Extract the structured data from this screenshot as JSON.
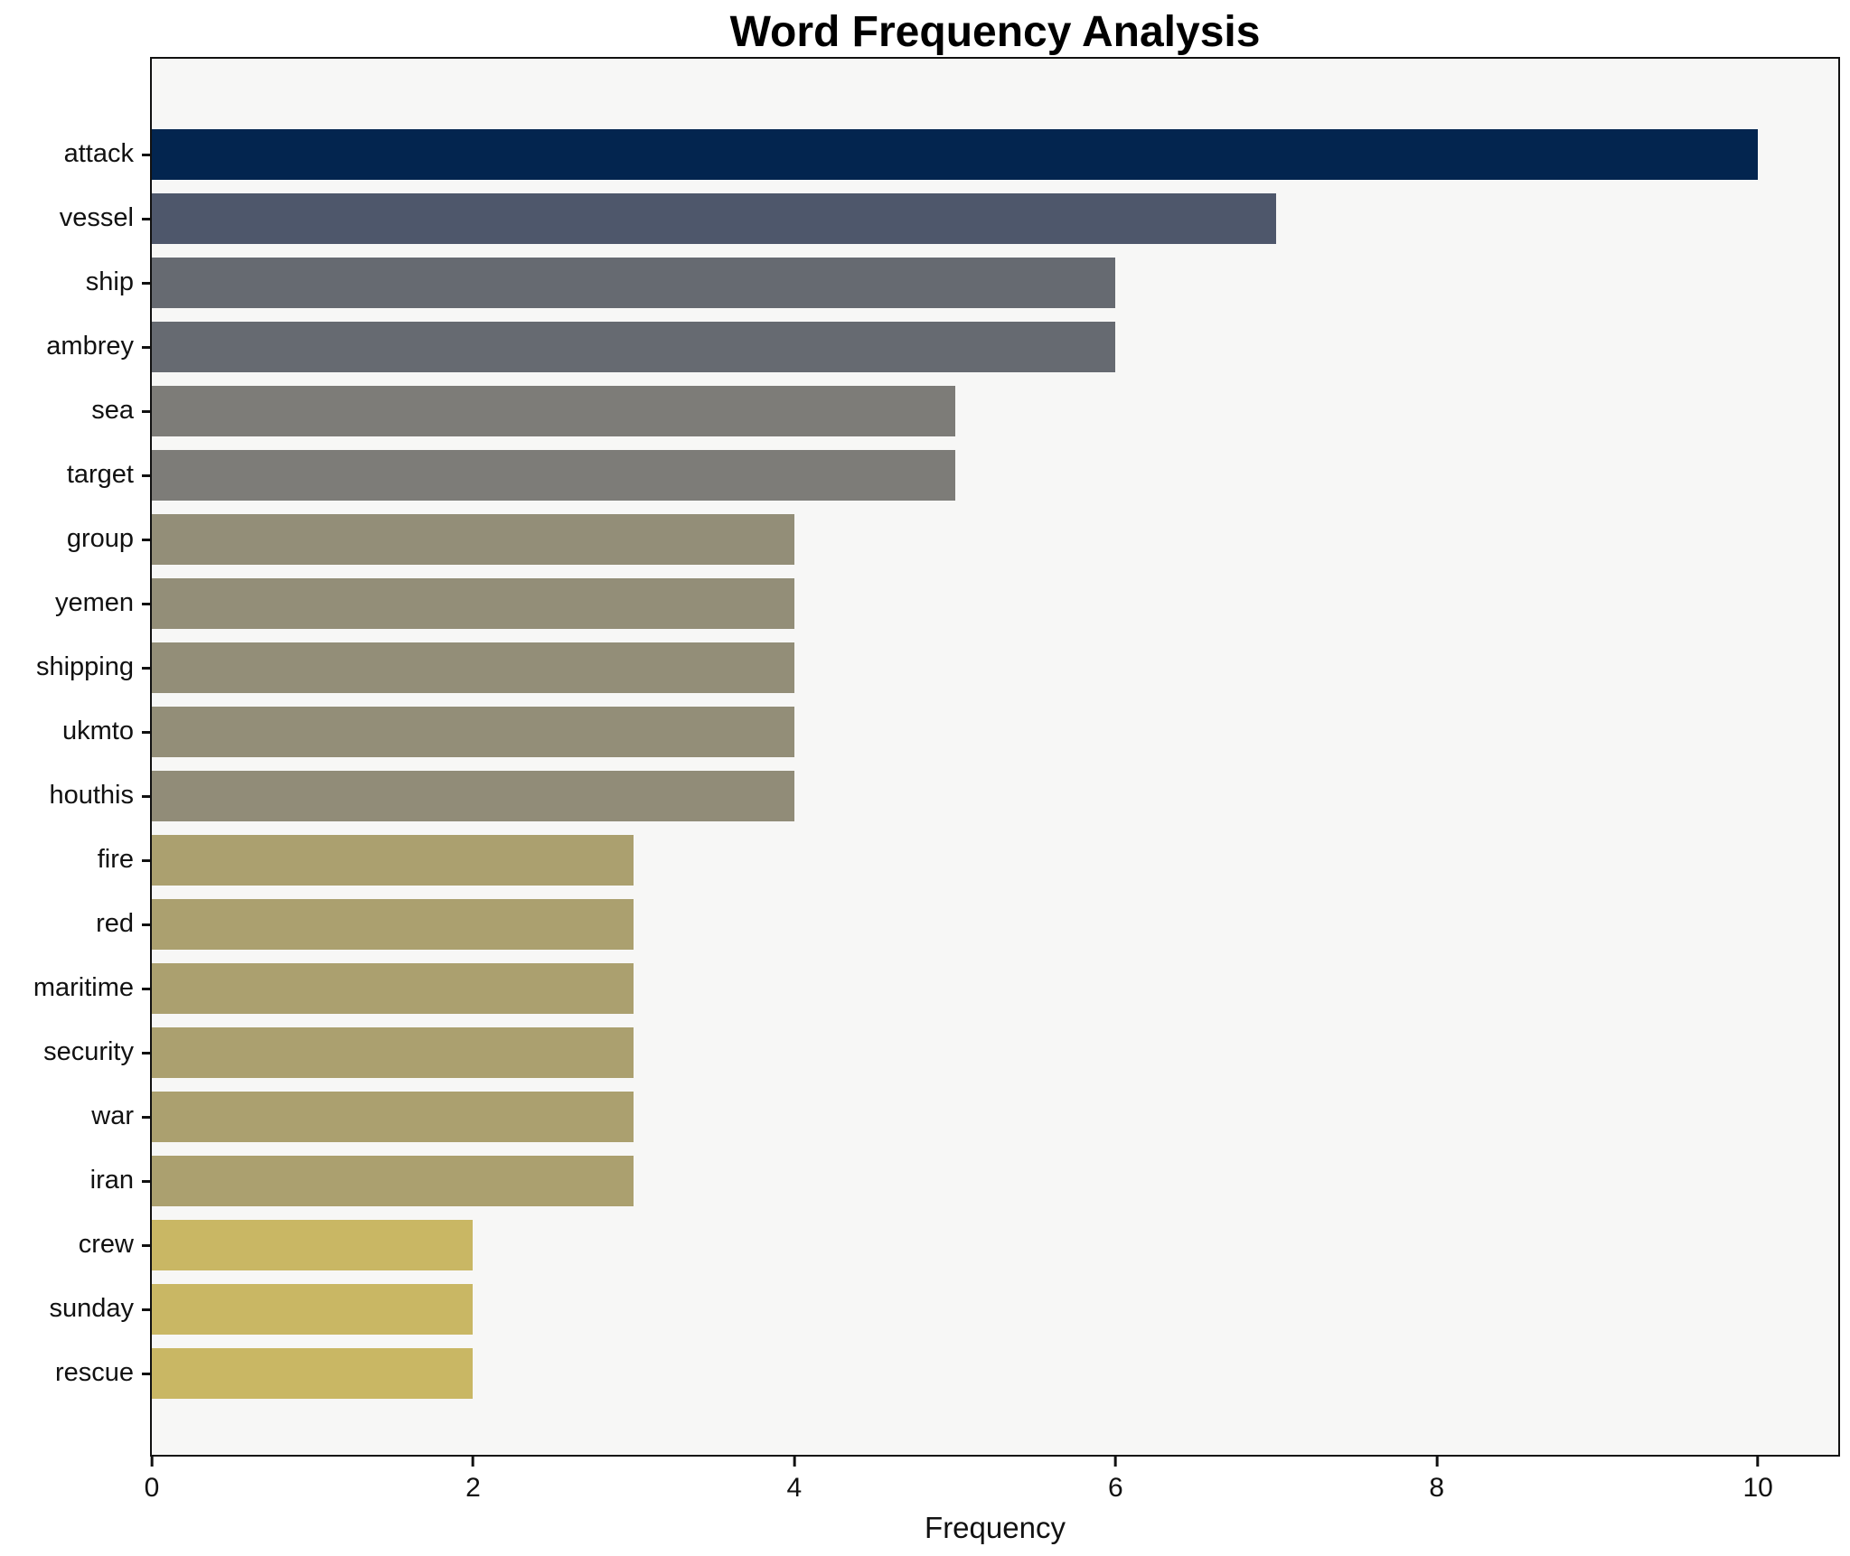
{
  "title": "Word Frequency Analysis",
  "xlabel": "Frequency",
  "chart_data": {
    "type": "bar",
    "orientation": "horizontal",
    "title": "Word Frequency Analysis",
    "xlabel": "Frequency",
    "ylabel": "",
    "grid": false,
    "legend": false,
    "xlim": [
      0,
      10.5
    ],
    "x_ticks": [
      0,
      2,
      4,
      6,
      8,
      10
    ],
    "plot_background": "#f7f7f6",
    "figure_background": "#ffffff",
    "spine_color": "#111111",
    "categories": [
      "attack",
      "vessel",
      "ship",
      "ambrey",
      "sea",
      "target",
      "group",
      "yemen",
      "shipping",
      "ukmto",
      "houthis",
      "fire",
      "red",
      "maritime",
      "security",
      "war",
      "iran",
      "crew",
      "sunday",
      "rescue"
    ],
    "values": [
      10,
      7,
      6,
      6,
      5,
      5,
      4,
      4,
      4,
      4,
      4,
      3,
      3,
      3,
      3,
      3,
      3,
      2,
      2,
      2
    ],
    "bar_colors": [
      "#03254f",
      "#4e576b",
      "#666a71",
      "#666a71",
      "#7d7c78",
      "#7d7c78",
      "#938e78",
      "#938e78",
      "#938e78",
      "#938e78",
      "#918c78",
      "#aba06f",
      "#aba06f",
      "#aba06f",
      "#aba06f",
      "#aba06f",
      "#aba06f",
      "#c9b764",
      "#c9b764",
      "#c9b764"
    ]
  }
}
